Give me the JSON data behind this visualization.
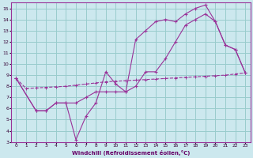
{
  "xlabel": "Windchill (Refroidissement éolien,°C)",
  "bg_color": "#cce8ee",
  "line_color": "#993399",
  "grid_color": "#99cccc",
  "xlim": [
    -0.5,
    23.5
  ],
  "ylim": [
    3,
    15.5
  ],
  "xticks": [
    0,
    1,
    2,
    3,
    4,
    5,
    6,
    7,
    8,
    9,
    10,
    11,
    12,
    13,
    14,
    15,
    16,
    17,
    18,
    19,
    20,
    21,
    22,
    23
  ],
  "yticks": [
    3,
    4,
    5,
    6,
    7,
    8,
    9,
    10,
    11,
    12,
    13,
    14,
    15
  ],
  "line1_x": [
    0,
    1,
    2,
    3,
    4,
    5,
    6,
    7,
    8,
    9,
    10,
    11,
    12,
    13,
    14,
    15,
    16,
    17,
    18,
    19,
    20,
    21,
    22,
    23
  ],
  "line1_y": [
    8.7,
    7.8,
    7.85,
    7.9,
    7.95,
    8.0,
    8.1,
    8.2,
    8.3,
    8.4,
    8.45,
    8.5,
    8.55,
    8.6,
    8.65,
    8.7,
    8.75,
    8.8,
    8.85,
    8.9,
    8.95,
    9.0,
    9.1,
    9.2
  ],
  "line2_x": [
    0,
    2,
    3,
    4,
    5,
    6,
    7,
    8,
    9,
    10,
    11,
    12,
    13,
    14,
    15,
    16,
    17,
    18,
    19,
    20,
    21,
    22,
    23
  ],
  "line2_y": [
    8.7,
    5.8,
    5.8,
    6.5,
    6.5,
    3.2,
    5.3,
    6.5,
    9.3,
    8.2,
    7.5,
    12.2,
    13.0,
    13.8,
    14.0,
    13.8,
    14.5,
    15.0,
    15.3,
    13.8,
    11.7,
    11.3,
    9.2
  ],
  "line3_x": [
    0,
    2,
    3,
    4,
    5,
    6,
    7,
    8,
    9,
    10,
    11,
    12,
    13,
    14,
    15,
    16,
    17,
    18,
    19,
    20,
    21,
    22,
    23
  ],
  "line3_y": [
    8.7,
    5.8,
    5.8,
    6.5,
    6.5,
    6.5,
    7.0,
    7.5,
    7.5,
    7.5,
    7.5,
    8.0,
    9.3,
    9.3,
    10.5,
    12.0,
    13.5,
    14.0,
    14.5,
    13.8,
    11.7,
    11.3,
    9.2
  ]
}
